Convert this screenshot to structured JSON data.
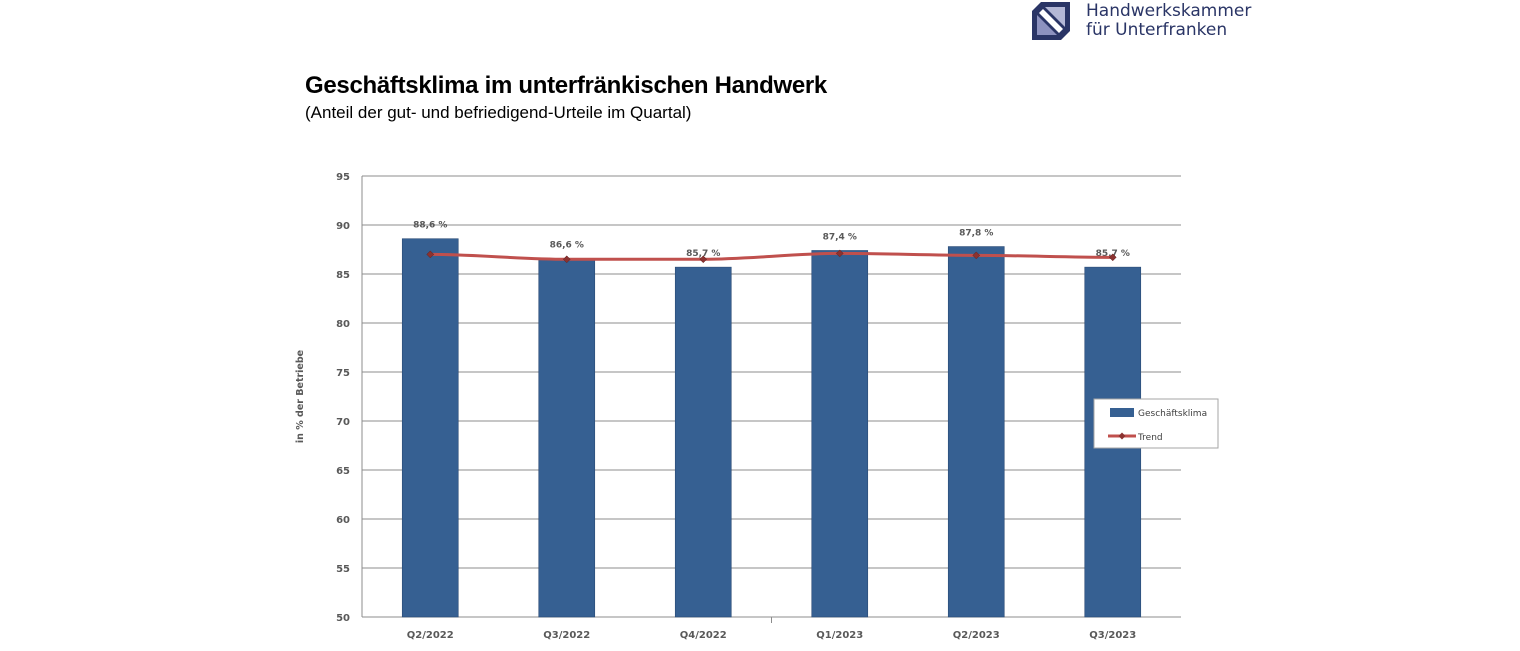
{
  "logo": {
    "line1": "Handwerkskammer",
    "line2": "für Unterfranken",
    "icon": "handwerkskammer-logo-icon",
    "color": "#2a3566"
  },
  "chart_data": {
    "type": "bar",
    "title": "Geschäftsklima im unterfränkischen Handwerk",
    "subtitle": "(Anteil der gut- und befriedigend-Urteile im Quartal)",
    "ylabel": "in % der Betriebe",
    "xlabel": "",
    "categories": [
      "Q2/2022",
      "Q3/2022",
      "Q4/2022",
      "Q1/2023",
      "Q2/2023",
      "Q3/2023"
    ],
    "ylim": [
      50,
      95
    ],
    "yticks": [
      50,
      55,
      60,
      65,
      70,
      75,
      80,
      85,
      90,
      95
    ],
    "grid": true,
    "legend_position": "right",
    "series": [
      {
        "name": "Geschäftsklima",
        "type": "bar",
        "color": "#366092",
        "values": [
          88.6,
          86.6,
          85.7,
          87.4,
          87.8,
          85.7
        ],
        "labels": [
          "88,6 %",
          "86,6 %",
          "85,7 %",
          "87,4 %",
          "87,8 %",
          "85,7 %"
        ]
      },
      {
        "name": "Trend",
        "type": "line",
        "color": "#c0504d",
        "values": [
          87.0,
          86.5,
          86.5,
          87.1,
          86.9,
          86.7
        ]
      }
    ]
  }
}
